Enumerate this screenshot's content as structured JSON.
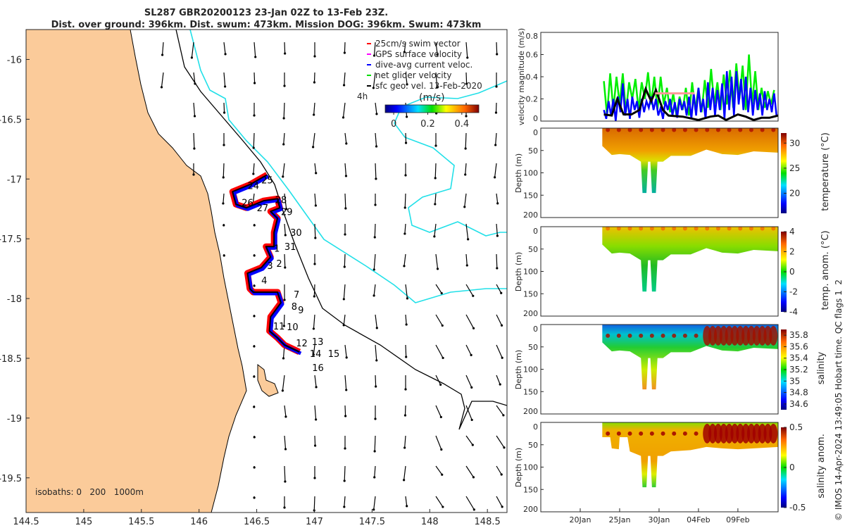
{
  "title": {
    "line1": "SL287 GBR20200123 23-Jan 02Z to 13-Feb 23Z.",
    "line2": "Dist. over ground: 396km. Dist. swum: 473km. Mission DOG: 396km. Swum: 473km"
  },
  "chart_data": [
    {
      "type": "scatter",
      "name": "map",
      "xlim": [
        144.5,
        148.67
      ],
      "ylim": [
        -19.79,
        -15.75
      ],
      "xticks": [
        "144.5",
        "145",
        "145.5",
        "146",
        "146.5",
        "147",
        "147.5",
        "148",
        "148.5"
      ],
      "xtick_values": [
        144.5,
        145,
        145.5,
        146,
        146.5,
        147,
        147.5,
        148,
        148.5
      ],
      "yticks": [
        "-16",
        "-16.5",
        "-17",
        "-17.5",
        "-18",
        "-18.5",
        "-19",
        "-19.5"
      ],
      "ytick_values": [
        -16,
        -16.5,
        -17,
        -17.5,
        -18,
        -18.5,
        -19,
        -19.5
      ],
      "legend": [
        {
          "label": "25cm/s swim vector",
          "color": "#ff0000"
        },
        {
          "label": "GPS surface velocity",
          "color": "#ff00ff"
        },
        {
          "label": "dive-avg current veloc.",
          "color": "#0000ff"
        },
        {
          "label": "net glider velocity",
          "color": "#00dd00"
        },
        {
          "label": "sfc geo. vel. 13-Feb-2020",
          "color": "#000000"
        }
      ],
      "interval_label": "4h",
      "colorbar": {
        "label": "(m/s)",
        "ticks": [
          "0",
          "0.2",
          "0.4"
        ],
        "tick_values": [
          0,
          0.2,
          0.4
        ],
        "range": [
          -0.05,
          0.5
        ]
      },
      "isobaths_label": "isobaths: 0   200   1000m",
      "track": [
        [
          146.59,
          -16.965
        ],
        [
          146.44,
          -17.047
        ],
        [
          146.29,
          -17.106
        ],
        [
          146.32,
          -17.212
        ],
        [
          146.41,
          -17.241
        ],
        [
          146.56,
          -17.182
        ],
        [
          146.68,
          -17.165
        ],
        [
          146.7,
          -17.241
        ],
        [
          146.62,
          -17.271
        ],
        [
          146.68,
          -17.329
        ],
        [
          146.65,
          -17.447
        ],
        [
          146.65,
          -17.565
        ],
        [
          146.58,
          -17.565
        ],
        [
          146.62,
          -17.653
        ],
        [
          146.54,
          -17.741
        ],
        [
          146.42,
          -17.788
        ],
        [
          146.44,
          -17.918
        ],
        [
          146.47,
          -17.947
        ],
        [
          146.68,
          -17.947
        ],
        [
          146.71,
          -18.035
        ],
        [
          146.62,
          -18.153
        ],
        [
          146.61,
          -18.271
        ],
        [
          146.68,
          -18.329
        ],
        [
          146.74,
          -18.388
        ],
        [
          146.87,
          -18.447
        ]
      ],
      "day_labels": [
        {
          "t": "25",
          "lon": 146.54,
          "lat": -17.006
        },
        {
          "t": "24",
          "lon": 146.42,
          "lat": -17.053
        },
        {
          "t": "26",
          "lon": 146.37,
          "lat": -17.112
        },
        {
          "t": "27",
          "lon": 146.5,
          "lat": -17.241
        },
        {
          "t": "28",
          "lon": 146.66,
          "lat": -17.171
        },
        {
          "t": "29",
          "lon": 146.71,
          "lat": -17.271
        },
        {
          "t": "30",
          "lon": 146.79,
          "lat": -17.447
        },
        {
          "t": "31",
          "lon": 146.74,
          "lat": -17.565
        },
        {
          "t": "1",
          "lon": 146.65,
          "lat": -17.58
        },
        {
          "t": "2",
          "lon": 146.67,
          "lat": -17.624
        },
        {
          "t": "3",
          "lon": 146.59,
          "lat": -17.724
        },
        {
          "t": "4",
          "lon": 146.54,
          "lat": -17.847
        },
        {
          "t": "7",
          "lon": 146.82,
          "lat": -17.965
        },
        {
          "t": "8",
          "lon": 146.8,
          "lat": -18.065
        },
        {
          "t": "9",
          "lon": 146.76,
          "lat": -18.094
        },
        {
          "t": "10",
          "lon": 146.76,
          "lat": -18.153
        },
        {
          "t": "11",
          "lon": 146.74,
          "lat": -18.229
        },
        {
          "t": "12",
          "lon": 146.84,
          "lat": -18.371
        },
        {
          "t": "13",
          "lon": 146.88,
          "lat": -18.359
        },
        {
          "t": "14",
          "lon": 146.96,
          "lat": -18.459
        },
        {
          "t": "15",
          "lon": 147.02,
          "lat": -18.459
        },
        {
          "t": "16",
          "lon": 146.98,
          "lat": -18.494
        }
      ]
    },
    {
      "type": "line",
      "name": "velocity",
      "ylabel": "velocity magnitude (m/s)",
      "ylim": [
        0,
        0.8
      ],
      "yticks": [
        "0",
        "0.2",
        "0.4",
        "0.6",
        "0.8"
      ],
      "ytick_values": [
        0,
        0.2,
        0.4,
        0.6,
        0.8
      ],
      "xlim_day_of_jan": [
        15.0,
        45.1
      ],
      "series": [
        {
          "name": "net glider velocity",
          "color": "#00ee00",
          "t0": 23,
          "dt": 0.4,
          "values": [
            0.36,
            0.05,
            0.43,
            0.1,
            0.4,
            0.15,
            0.43,
            0.08,
            0.35,
            0.2,
            0.38,
            0.1,
            0.35,
            0.2,
            0.44,
            0.15,
            0.4,
            0.1,
            0.4,
            0.15,
            0.3,
            0.08,
            0.25,
            0.05,
            0.22,
            0.1,
            0.3,
            0.05,
            0.35,
            0.1,
            0.3,
            0.08,
            0.37,
            0.12,
            0.47,
            0.15,
            0.35,
            0.1,
            0.42,
            0.15,
            0.46,
            0.12,
            0.52,
            0.2,
            0.5,
            0.1,
            0.6,
            0.15,
            0.45,
            0.1,
            0.3,
            0.12,
            0.27,
            0.15,
            0.28
          ]
        },
        {
          "name": "dive-avg current veloc.",
          "color": "#0000ff",
          "t0": 23,
          "dt": 0.3,
          "values": [
            0.1,
            0.02,
            0.18,
            0.05,
            0.2,
            0.0,
            0.22,
            0.08,
            0.34,
            0.05,
            0.2,
            0.02,
            0.22,
            0.1,
            0.18,
            0.03,
            0.2,
            0.08,
            0.18,
            0.12,
            0.22,
            0.1,
            0.2,
            0.05,
            0.12,
            0.02,
            0.18,
            0.1,
            0.2,
            0.05,
            0.17,
            0.03,
            0.2,
            0.1,
            0.18,
            0.05,
            0.22,
            0.02,
            0.25,
            0.05,
            0.3,
            0.08,
            0.2,
            0.02,
            0.35,
            0.1,
            0.3,
            0.05,
            0.28,
            0.1,
            0.34,
            0.02,
            0.45,
            0.1,
            0.4,
            0.05,
            0.45,
            0.15,
            0.38,
            0.1,
            0.4,
            0.08,
            0.3,
            0.05,
            0.28,
            0.1,
            0.25,
            0.05,
            0.27,
            0.1,
            0.2,
            0.08,
            0.25,
            0.05
          ]
        },
        {
          "name": "sfc geo. vel.",
          "color": "#000000",
          "points": [
            [
              23,
              0.06
            ],
            [
              24,
              0.05
            ],
            [
              24.7,
              0.2
            ],
            [
              25.5,
              0.06
            ],
            [
              26.5,
              0.06
            ],
            [
              27.5,
              0.1
            ],
            [
              28.3,
              0.29
            ],
            [
              29.0,
              0.18
            ],
            [
              29.6,
              0.28
            ],
            [
              30.5,
              0.1
            ],
            [
              31.2,
              0.05
            ],
            [
              33,
              0.04
            ],
            [
              35,
              0.01
            ],
            [
              36.5,
              0.04
            ],
            [
              37.5,
              0.05
            ],
            [
              38.5,
              0.01
            ],
            [
              40,
              0.06
            ],
            [
              41,
              0.04
            ],
            [
              42,
              0.01
            ],
            [
              43,
              0.03
            ],
            [
              44,
              0.03
            ],
            [
              45.1,
              0.05
            ]
          ]
        },
        {
          "name": "GPS surface velocity",
          "color": "#ff9999",
          "points": [
            [
              29.5,
              0.25
            ],
            [
              34.5,
              0.25
            ]
          ]
        }
      ]
    },
    {
      "type": "heatmap",
      "name": "temperature",
      "ylabel": "Depth (m)",
      "clabel": "temperature (°C)",
      "yticks": [
        "0",
        "50",
        "100",
        "150",
        "200"
      ],
      "cticks": [
        "20",
        "25",
        "30"
      ],
      "crange": [
        16,
        32
      ]
    },
    {
      "type": "heatmap",
      "name": "temp-anomaly",
      "ylabel": "Depth (m)",
      "clabel": "temp. anom. (°C)",
      "yticks": [
        "0",
        "50",
        "100",
        "150",
        "200"
      ],
      "cticks": [
        "-4",
        "-2",
        "0",
        "2",
        "4"
      ],
      "crange": [
        -4,
        4
      ]
    },
    {
      "type": "heatmap",
      "name": "salinity",
      "ylabel": "Depth (m)",
      "clabel": "salinity",
      "yticks": [
        "0",
        "50",
        "100",
        "150",
        "200"
      ],
      "cticks": [
        "34.6",
        "34.8",
        "35",
        "35.2",
        "35.4",
        "35.6",
        "35.8"
      ],
      "crange": [
        34.5,
        35.9
      ]
    },
    {
      "type": "heatmap",
      "name": "salinity-anomaly",
      "ylabel": "Depth (m)",
      "clabel": "salinity anom.",
      "yticks": [
        "0",
        "50",
        "100",
        "150",
        "200"
      ],
      "cticks": [
        "-0.5",
        "0",
        "0.5"
      ],
      "crange": [
        -0.5,
        0.5
      ],
      "xticks": [
        "20Jan",
        "25Jan",
        "30Jan",
        "04Feb",
        "09Feb"
      ],
      "xtick_days": [
        20,
        25,
        30,
        35,
        40
      ]
    }
  ],
  "side_note": "© IMOS 14-Apr-2024 13:49:05 Hobart time. QC flags 1  2"
}
